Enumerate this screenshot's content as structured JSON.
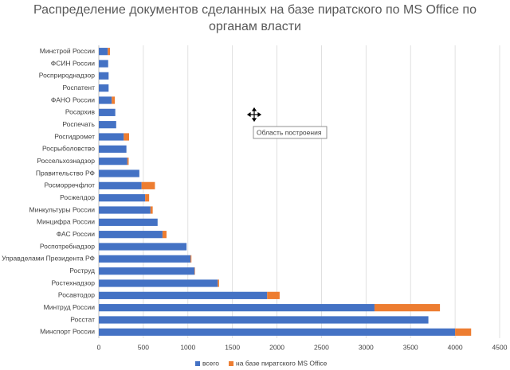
{
  "chart_data": {
    "type": "stacked-bar-horizontal",
    "title": "Распределение документов сделанных на базе пиратского по MS Office по органам власти",
    "categories": [
      "Минстрой России",
      "ФСИН России",
      "Росприроднадзор",
      "Роспатент",
      "ФАНО России",
      "Росархив",
      "Роспечать",
      "Росгидромет",
      "Росрыболовство",
      "Россельхознадзор",
      "Правительство РФ",
      "Росморречфлот",
      "Росжелдор",
      "Минкультуры России",
      "Минцифра России",
      "ФАС России",
      "Роспотребнадзор",
      "Управделами Президента РФ",
      "Роструд",
      "Ростехнадзор",
      "Росавтодор",
      "Минтруд России",
      "Росстат",
      "Минспорт России"
    ],
    "series": [
      {
        "name": "всего",
        "color": "#4472c4",
        "values": [
          100,
          105,
          110,
          110,
          145,
          185,
          195,
          280,
          310,
          320,
          455,
          480,
          520,
          580,
          660,
          715,
          985,
          1030,
          1075,
          1335,
          1890,
          3095,
          3700,
          4000
        ]
      },
      {
        "name": "на базе пиратского MS Office",
        "color": "#ed7d31",
        "values": [
          25,
          0,
          0,
          0,
          35,
          0,
          0,
          60,
          0,
          15,
          0,
          150,
          45,
          25,
          0,
          45,
          0,
          10,
          5,
          15,
          140,
          735,
          0,
          180
        ]
      }
    ],
    "xlim": [
      0,
      4500
    ],
    "xticks": [
      0,
      500,
      1000,
      1500,
      2000,
      2500,
      3000,
      3500,
      4000,
      4500
    ],
    "grid": true,
    "legend": "bottom",
    "annotation": "Область построения"
  }
}
